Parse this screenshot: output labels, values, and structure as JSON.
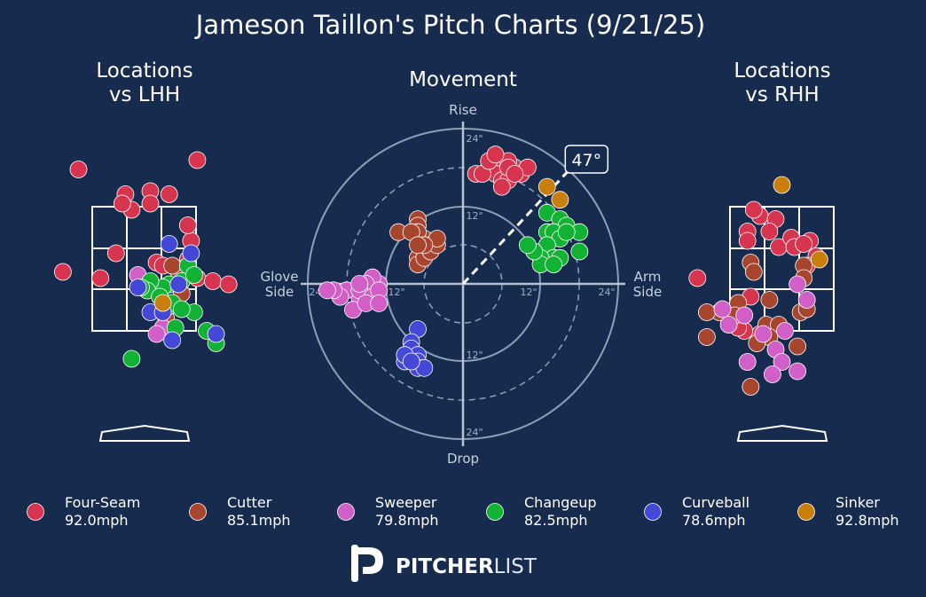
{
  "chart_data": {
    "type": "scatter",
    "title": "Jameson Taillon's Pitch Charts (9/21/25)",
    "panels": {
      "lhh_title_1": "Locations",
      "lhh_title_2": "vs LHH",
      "movement_title": "Movement",
      "rhh_title_1": "Locations",
      "rhh_title_2": "vs RHH"
    },
    "movement_axes": {
      "top": "Rise",
      "bottom": "Drop",
      "left_1": "Glove",
      "left_2": "Side",
      "right_1": "Arm",
      "right_2": "Side",
      "ring_labels": {
        "r24": "24\"",
        "r12": "12\""
      },
      "arm_angle_label": "47°",
      "arm_angle_deg": 47
    },
    "pitch_types": [
      {
        "name": "Four-Seam",
        "speed": "92.0mph",
        "color": "#d7354f"
      },
      {
        "name": "Cutter",
        "speed": "85.1mph",
        "color": "#a8452f"
      },
      {
        "name": "Sweeper",
        "speed": "79.8mph",
        "color": "#d25ec7"
      },
      {
        "name": "Changeup",
        "speed": "82.5mph",
        "color": "#12b235"
      },
      {
        "name": "Curveball",
        "speed": "78.6mph",
        "color": "#4348d6"
      },
      {
        "name": "Sinker",
        "speed": "92.8mph",
        "color": "#c97f0b"
      }
    ],
    "movement": [
      {
        "type": 0,
        "points": [
          [
            2,
            17
          ],
          [
            4,
            18
          ],
          [
            5,
            18
          ],
          [
            6,
            17
          ],
          [
            7,
            17
          ],
          [
            8,
            18
          ],
          [
            7,
            19
          ],
          [
            5,
            17
          ],
          [
            6,
            16
          ],
          [
            7,
            16
          ],
          [
            9,
            17
          ],
          [
            3,
            17
          ],
          [
            4,
            19
          ],
          [
            10,
            18
          ],
          [
            6,
            15
          ],
          [
            5,
            20
          ],
          [
            7,
            18
          ],
          [
            8,
            17
          ]
        ]
      },
      {
        "type": 1,
        "points": [
          [
            -7,
            10
          ],
          [
            -7,
            9
          ],
          [
            -6,
            7
          ],
          [
            -5,
            6
          ],
          [
            -6,
            5
          ],
          [
            -7,
            4
          ],
          [
            -7,
            3
          ],
          [
            -6,
            4
          ],
          [
            -5,
            5
          ],
          [
            -4,
            6
          ],
          [
            -7,
            8
          ],
          [
            -10,
            8
          ],
          [
            -8,
            8
          ],
          [
            -4,
            7
          ],
          [
            -6,
            6
          ],
          [
            -7,
            6
          ]
        ]
      },
      {
        "type": 2,
        "points": [
          [
            -13,
            0
          ],
          [
            -14,
            1
          ],
          [
            -15,
            0
          ],
          [
            -16,
            -2
          ],
          [
            -17,
            -4
          ],
          [
            -18,
            -1
          ],
          [
            -19,
            -2
          ],
          [
            -20,
            -1
          ],
          [
            -16,
            -1
          ],
          [
            -14,
            -2
          ],
          [
            -15,
            -3
          ],
          [
            -13,
            -1
          ],
          [
            -16,
            0
          ],
          [
            -13,
            -3
          ],
          [
            -21,
            -1
          ]
        ]
      },
      {
        "type": 3,
        "points": [
          [
            13,
            11
          ],
          [
            15,
            10
          ],
          [
            16,
            9
          ],
          [
            13,
            8
          ],
          [
            14,
            8
          ],
          [
            15,
            7
          ],
          [
            13,
            6
          ],
          [
            18,
            8
          ],
          [
            16,
            8
          ],
          [
            18,
            5
          ],
          [
            14,
            4
          ],
          [
            11,
            5
          ],
          [
            12,
            4
          ],
          [
            15,
            4
          ],
          [
            12,
            3
          ],
          [
            11,
            5
          ],
          [
            10,
            6
          ],
          [
            14,
            3
          ]
        ]
      },
      {
        "type": 4,
        "points": [
          [
            -7,
            -7
          ],
          [
            -8,
            -9
          ],
          [
            -8,
            -10
          ],
          [
            -7,
            -11
          ],
          [
            -7,
            -12
          ],
          [
            -7,
            -13
          ],
          [
            -9,
            -12
          ],
          [
            -6,
            -13
          ],
          [
            -9,
            -11
          ],
          [
            -8,
            -12
          ]
        ]
      },
      {
        "type": 5,
        "points": [
          [
            13,
            15
          ],
          [
            15,
            13
          ]
        ]
      }
    ],
    "locations_lhh": [
      {
        "type": 0,
        "points": [
          [
            -1.05,
            4.1
          ],
          [
            0.85,
            4.25
          ],
          [
            0.4,
            3.7
          ],
          [
            -0.2,
            3.45
          ],
          [
            -0.3,
            3.7
          ],
          [
            0.1,
            3.75
          ],
          [
            -0.35,
            3.55
          ],
          [
            0.1,
            3.55
          ],
          [
            0.75,
            2.95
          ],
          [
            0.7,
            2.65
          ],
          [
            -0.45,
            2.75
          ],
          [
            -1.3,
            2.45
          ],
          [
            -0.7,
            2.35
          ],
          [
            0.2,
            2.6
          ],
          [
            0.3,
            2.55
          ],
          [
            0.55,
            2.5
          ],
          [
            0.85,
            2.35
          ],
          [
            1.1,
            2.3
          ],
          [
            0.7,
            2.4
          ],
          [
            1.35,
            2.25
          ],
          [
            0.7,
            3.2
          ]
        ]
      },
      {
        "type": 1,
        "points": [
          [
            0.55,
            2.45
          ],
          [
            0.45,
            2.55
          ],
          [
            0.6,
            2.1
          ],
          [
            0.35,
            1.7
          ]
        ]
      },
      {
        "type": 2,
        "points": [
          [
            -0.1,
            2.4
          ],
          [
            0.3,
            1.55
          ],
          [
            0.2,
            1.45
          ]
        ]
      },
      {
        "type": 3,
        "points": [
          [
            0.7,
            2.55
          ],
          [
            0.6,
            2.3
          ],
          [
            0.4,
            2.25
          ],
          [
            0.3,
            2.2
          ],
          [
            0.4,
            1.9
          ],
          [
            0.45,
            1.95
          ],
          [
            0.8,
            1.8
          ],
          [
            1.0,
            1.5
          ],
          [
            0.6,
            1.85
          ],
          [
            0.1,
            2.3
          ],
          [
            0.05,
            2.15
          ],
          [
            -0.05,
            2.2
          ],
          [
            0.5,
            1.55
          ],
          [
            0.25,
            2.05
          ],
          [
            1.15,
            1.3
          ],
          [
            -0.2,
            1.05
          ],
          [
            0.8,
            2.4
          ]
        ]
      },
      {
        "type": 4,
        "points": [
          [
            0.4,
            2.9
          ],
          [
            0.75,
            2.75
          ],
          [
            -0.1,
            2.2
          ],
          [
            0.1,
            1.8
          ],
          [
            0.45,
            1.35
          ],
          [
            1.15,
            1.45
          ],
          [
            0.55,
            2.25
          ],
          [
            0.3,
            1.8
          ]
        ]
      },
      {
        "type": 5,
        "points": [
          [
            0.3,
            1.95
          ]
        ]
      }
    ],
    "locations_rhh": [
      {
        "type": 0,
        "points": [
          [
            -0.35,
            3.35
          ],
          [
            -0.45,
            3.45
          ],
          [
            -0.55,
            3.1
          ],
          [
            -0.55,
            2.95
          ],
          [
            -0.1,
            3.3
          ],
          [
            -0.2,
            3.1
          ],
          [
            -0.05,
            2.85
          ],
          [
            0.15,
            3.0
          ],
          [
            0.2,
            2.85
          ],
          [
            0.45,
            2.95
          ],
          [
            0.35,
            2.9
          ],
          [
            0.55,
            2.7
          ],
          [
            -1.35,
            2.35
          ],
          [
            -0.5,
            2.05
          ],
          [
            -0.15,
            1.55
          ],
          [
            -0.35,
            1.45
          ],
          [
            -0.6,
            1.5
          ],
          [
            -0.7,
            1.55
          ],
          [
            0.4,
            2.55
          ]
        ]
      },
      {
        "type": 1,
        "points": [
          [
            -0.5,
            2.6
          ],
          [
            -0.45,
            2.45
          ],
          [
            -0.7,
            1.95
          ],
          [
            -0.2,
            2.0
          ],
          [
            0.35,
            2.55
          ],
          [
            -0.85,
            1.7
          ],
          [
            -0.75,
            1.75
          ],
          [
            -0.25,
            1.6
          ],
          [
            -0.05,
            1.6
          ],
          [
            -1.0,
            1.8
          ],
          [
            -1.2,
            1.8
          ],
          [
            0.35,
            2.35
          ],
          [
            0.3,
            1.8
          ],
          [
            -0.2,
            1.4
          ],
          [
            -0.4,
            1.3
          ],
          [
            0.25,
            1.25
          ],
          [
            -0.5,
            0.6
          ],
          [
            -1.2,
            1.4
          ],
          [
            0.4,
            1.85
          ]
        ]
      },
      {
        "type": 2,
        "points": [
          [
            -0.95,
            1.85
          ],
          [
            -0.85,
            1.6
          ],
          [
            -0.3,
            1.45
          ],
          [
            0.05,
            1.5
          ],
          [
            0.25,
            2.25
          ],
          [
            0.4,
            2.0
          ],
          [
            -0.1,
            1.2
          ],
          [
            -0.55,
            1.0
          ],
          [
            0.0,
            1.0
          ],
          [
            -0.15,
            0.8
          ],
          [
            0.25,
            0.85
          ],
          [
            -0.6,
            1.75
          ]
        ]
      },
      {
        "type": 5,
        "points": [
          [
            0.0,
            3.85
          ],
          [
            0.6,
            2.65
          ]
        ]
      }
    ]
  },
  "logo": {
    "part1": "PITCHER",
    "part2": "LIST"
  }
}
